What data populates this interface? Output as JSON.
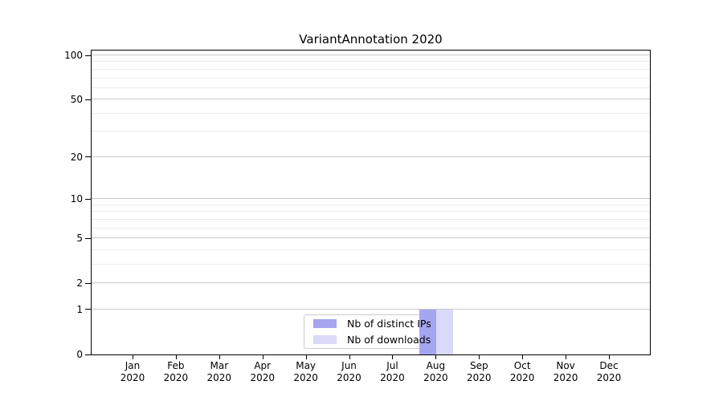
{
  "title": "VariantAnnotation 2020",
  "chart_data": {
    "type": "bar",
    "title": "VariantAnnotation 2020",
    "categories": [
      "Jan 2020",
      "Feb 2020",
      "Mar 2020",
      "Apr 2020",
      "May 2020",
      "Jun 2020",
      "Jul 2020",
      "Aug 2020",
      "Sep 2020",
      "Oct 2020",
      "Nov 2020",
      "Dec 2020"
    ],
    "x_tick_line1": [
      "Jan",
      "Feb",
      "Mar",
      "Apr",
      "May",
      "Jun",
      "Jul",
      "Aug",
      "Sep",
      "Oct",
      "Nov",
      "Dec"
    ],
    "x_tick_line2": "2020",
    "series": [
      {
        "name": "Nb of distinct IPs",
        "color": "#a5a5f0",
        "values": [
          0,
          0,
          0,
          0,
          0,
          0,
          0,
          1,
          0,
          0,
          0,
          0
        ]
      },
      {
        "name": "Nb of downloads",
        "color": "#dadaf8",
        "values": [
          0,
          0,
          0,
          0,
          0,
          0,
          0,
          1,
          0,
          0,
          0,
          0
        ]
      }
    ],
    "xlabel": "",
    "ylabel": "",
    "y_scale": "log1p",
    "y_ticks": [
      0,
      1,
      2,
      5,
      10,
      20,
      50,
      100
    ],
    "y_minor_ticks": [
      3,
      4,
      6,
      7,
      8,
      9,
      30,
      40,
      60,
      70,
      80,
      90
    ],
    "ylim": [
      0,
      110
    ],
    "grid": "horizontal",
    "legend_position": "lower center inside",
    "colors": {
      "axis": "#000000",
      "grid_major": "#c9c9c9",
      "grid_minor": "#ececec",
      "background": "#ffffff"
    }
  }
}
